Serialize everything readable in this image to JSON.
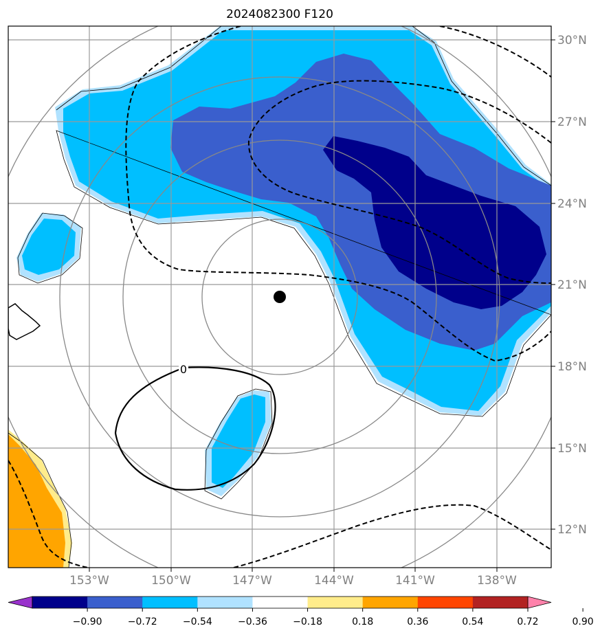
{
  "chart_data": {
    "type": "heatmap",
    "title": "2024082300 F120",
    "projection": "polar stereographic-like map, lat/lon grid",
    "lon_ticks": [
      "153°W",
      "150°W",
      "147°W",
      "144°W",
      "141°W",
      "138°W"
    ],
    "lat_ticks": [
      "30°N",
      "27°N",
      "24°N",
      "21°N",
      "18°N",
      "15°N",
      "12°N"
    ],
    "grid": true,
    "center_marker": {
      "lon": -146,
      "lat": 20.5
    },
    "range_rings": 4,
    "contour_labels": [
      "0"
    ],
    "colorbar": {
      "levels": [
        "−0.90",
        "−0.72",
        "−0.54",
        "−0.36",
        "−0.18",
        "0.18",
        "0.36",
        "0.54",
        "0.72",
        "0.90"
      ],
      "colors": [
        "#9932cc",
        "#00008b",
        "#3a5fcd",
        "#00bfff",
        "#b0e2ff",
        "#ffffff",
        "#ffec8b",
        "#ffa500",
        "#ff4500",
        "#b22222",
        "#ff82ab"
      ],
      "extend": "both"
    }
  }
}
